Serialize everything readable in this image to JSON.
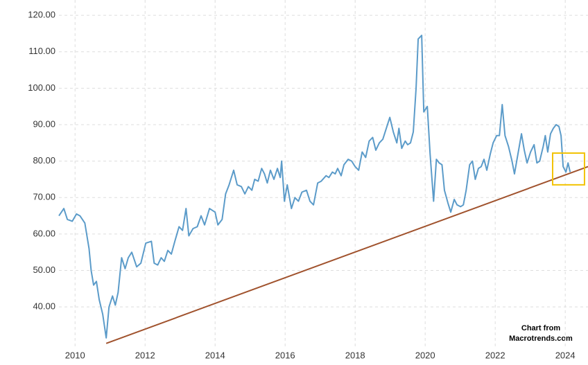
{
  "chart_data": {
    "type": "line",
    "x": [
      2009.54,
      2009.68,
      2009.78,
      2009.92,
      2010.04,
      2010.14,
      2010.28,
      2010.4,
      2010.46,
      2010.53,
      2010.61,
      2010.69,
      2010.79,
      2010.89,
      2010.97,
      2011.07,
      2011.15,
      2011.23,
      2011.33,
      2011.43,
      2011.52,
      2011.62,
      2011.76,
      2011.88,
      2012.02,
      2012.18,
      2012.26,
      2012.36,
      2012.46,
      2012.55,
      2012.65,
      2012.75,
      2012.85,
      2012.97,
      2013.07,
      2013.17,
      2013.25,
      2013.37,
      2013.49,
      2013.6,
      2013.7,
      2013.84,
      2014.0,
      2014.08,
      2014.2,
      2014.3,
      2014.4,
      2014.53,
      2014.63,
      2014.75,
      2014.85,
      2014.95,
      2015.05,
      2015.13,
      2015.23,
      2015.33,
      2015.41,
      2015.49,
      2015.58,
      2015.68,
      2015.78,
      2015.86,
      2015.9,
      2015.98,
      2016.06,
      2016.18,
      2016.28,
      2016.38,
      2016.48,
      2016.61,
      2016.71,
      2016.81,
      2016.93,
      2017.03,
      2017.17,
      2017.25,
      2017.35,
      2017.43,
      2017.5,
      2017.6,
      2017.68,
      2017.8,
      2017.9,
      2018.0,
      2018.1,
      2018.2,
      2018.3,
      2018.4,
      2018.5,
      2018.59,
      2018.69,
      2018.79,
      2018.99,
      2019.09,
      2019.19,
      2019.25,
      2019.33,
      2019.43,
      2019.5,
      2019.58,
      2019.66,
      2019.74,
      2019.8,
      2019.9,
      2019.96,
      2020.06,
      2020.14,
      2020.24,
      2020.32,
      2020.4,
      2020.48,
      2020.55,
      2020.65,
      2020.73,
      2020.83,
      2020.91,
      2021.01,
      2021.09,
      2021.17,
      2021.27,
      2021.35,
      2021.43,
      2021.52,
      2021.6,
      2021.68,
      2021.76,
      2021.86,
      2021.94,
      2022.04,
      2022.12,
      2022.2,
      2022.28,
      2022.38,
      2022.48,
      2022.55,
      2022.65,
      2022.75,
      2022.83,
      2022.91,
      2023.01,
      2023.11,
      2023.19,
      2023.27,
      2023.37,
      2023.43,
      2023.5,
      2023.58,
      2023.66,
      2023.74,
      2023.82,
      2023.88,
      2023.94,
      2024.02,
      2024.08,
      2024.14
    ],
    "series": [
      {
        "color": "#5b9bc9",
        "values": [
          65,
          67,
          64,
          63.5,
          65.5,
          65,
          63,
          56,
          50,
          46,
          47,
          42,
          38,
          31.5,
          40,
          43,
          40.5,
          44,
          53.5,
          50.5,
          53.5,
          55,
          51,
          52,
          57.5,
          58,
          52,
          51.5,
          53.5,
          52.5,
          55.5,
          54.5,
          58,
          62,
          61,
          67,
          59.5,
          61.5,
          62,
          65,
          62.5,
          67,
          66,
          62.5,
          64,
          71,
          73.5,
          77.5,
          73.5,
          73,
          71,
          73,
          72,
          75,
          74.5,
          78,
          76.5,
          74,
          77.5,
          75,
          78,
          75.5,
          80,
          69,
          73.5,
          67,
          70,
          69,
          71.5,
          72,
          69,
          68,
          74,
          74.5,
          76,
          75.5,
          77,
          76.5,
          78,
          76,
          79,
          80.5,
          80,
          78.5,
          77.5,
          82.5,
          81,
          85.5,
          86.5,
          83,
          85,
          86,
          92,
          88,
          85,
          89,
          83.5,
          85.5,
          84.5,
          85,
          88,
          100,
          113.5,
          114.5,
          93.5,
          95,
          82,
          69,
          80.5,
          79.5,
          79,
          72,
          68.5,
          66,
          69.5,
          68,
          67.5,
          68,
          72,
          79,
          80,
          75,
          78,
          78.5,
          80.5,
          77.5,
          82,
          85,
          87,
          87,
          95.5,
          87,
          84,
          80,
          76.5,
          82,
          87.5,
          83,
          79.5,
          82.5,
          84.5,
          79.5,
          80,
          84,
          87,
          82.5,
          87.5,
          89,
          90,
          89.5,
          87,
          78.5,
          77,
          79.5,
          77
        ]
      }
    ],
    "trendline": {
      "color": "#a0522d",
      "x": [
        2010.89,
        2024.65
      ],
      "y": [
        30,
        78.5
      ]
    },
    "highlight": {
      "color": "#f2c200",
      "x": [
        2023.64,
        2024.55
      ],
      "y": [
        73.5,
        82.2
      ]
    },
    "annotations": [
      "Chart from",
      "Macrotrends.com"
    ],
    "xlim": [
      2009.54,
      2024.65
    ],
    "xticks": [
      2010,
      2012,
      2014,
      2016,
      2018,
      2020,
      2022,
      2024
    ],
    "ylim": [
      29.2,
      124.2
    ],
    "yticks": [
      {
        "value": 40,
        "label": "40.00"
      },
      {
        "value": 50,
        "label": "50.00"
      },
      {
        "value": 60,
        "label": "60.00"
      },
      {
        "value": 70,
        "label": "70.00"
      },
      {
        "value": 80,
        "label": "80.00"
      },
      {
        "value": 90,
        "label": "90.00"
      },
      {
        "value": 100,
        "label": "100.00"
      },
      {
        "value": 110,
        "label": "110.00"
      },
      {
        "value": 120,
        "label": "120.00"
      }
    ],
    "grid": true
  }
}
